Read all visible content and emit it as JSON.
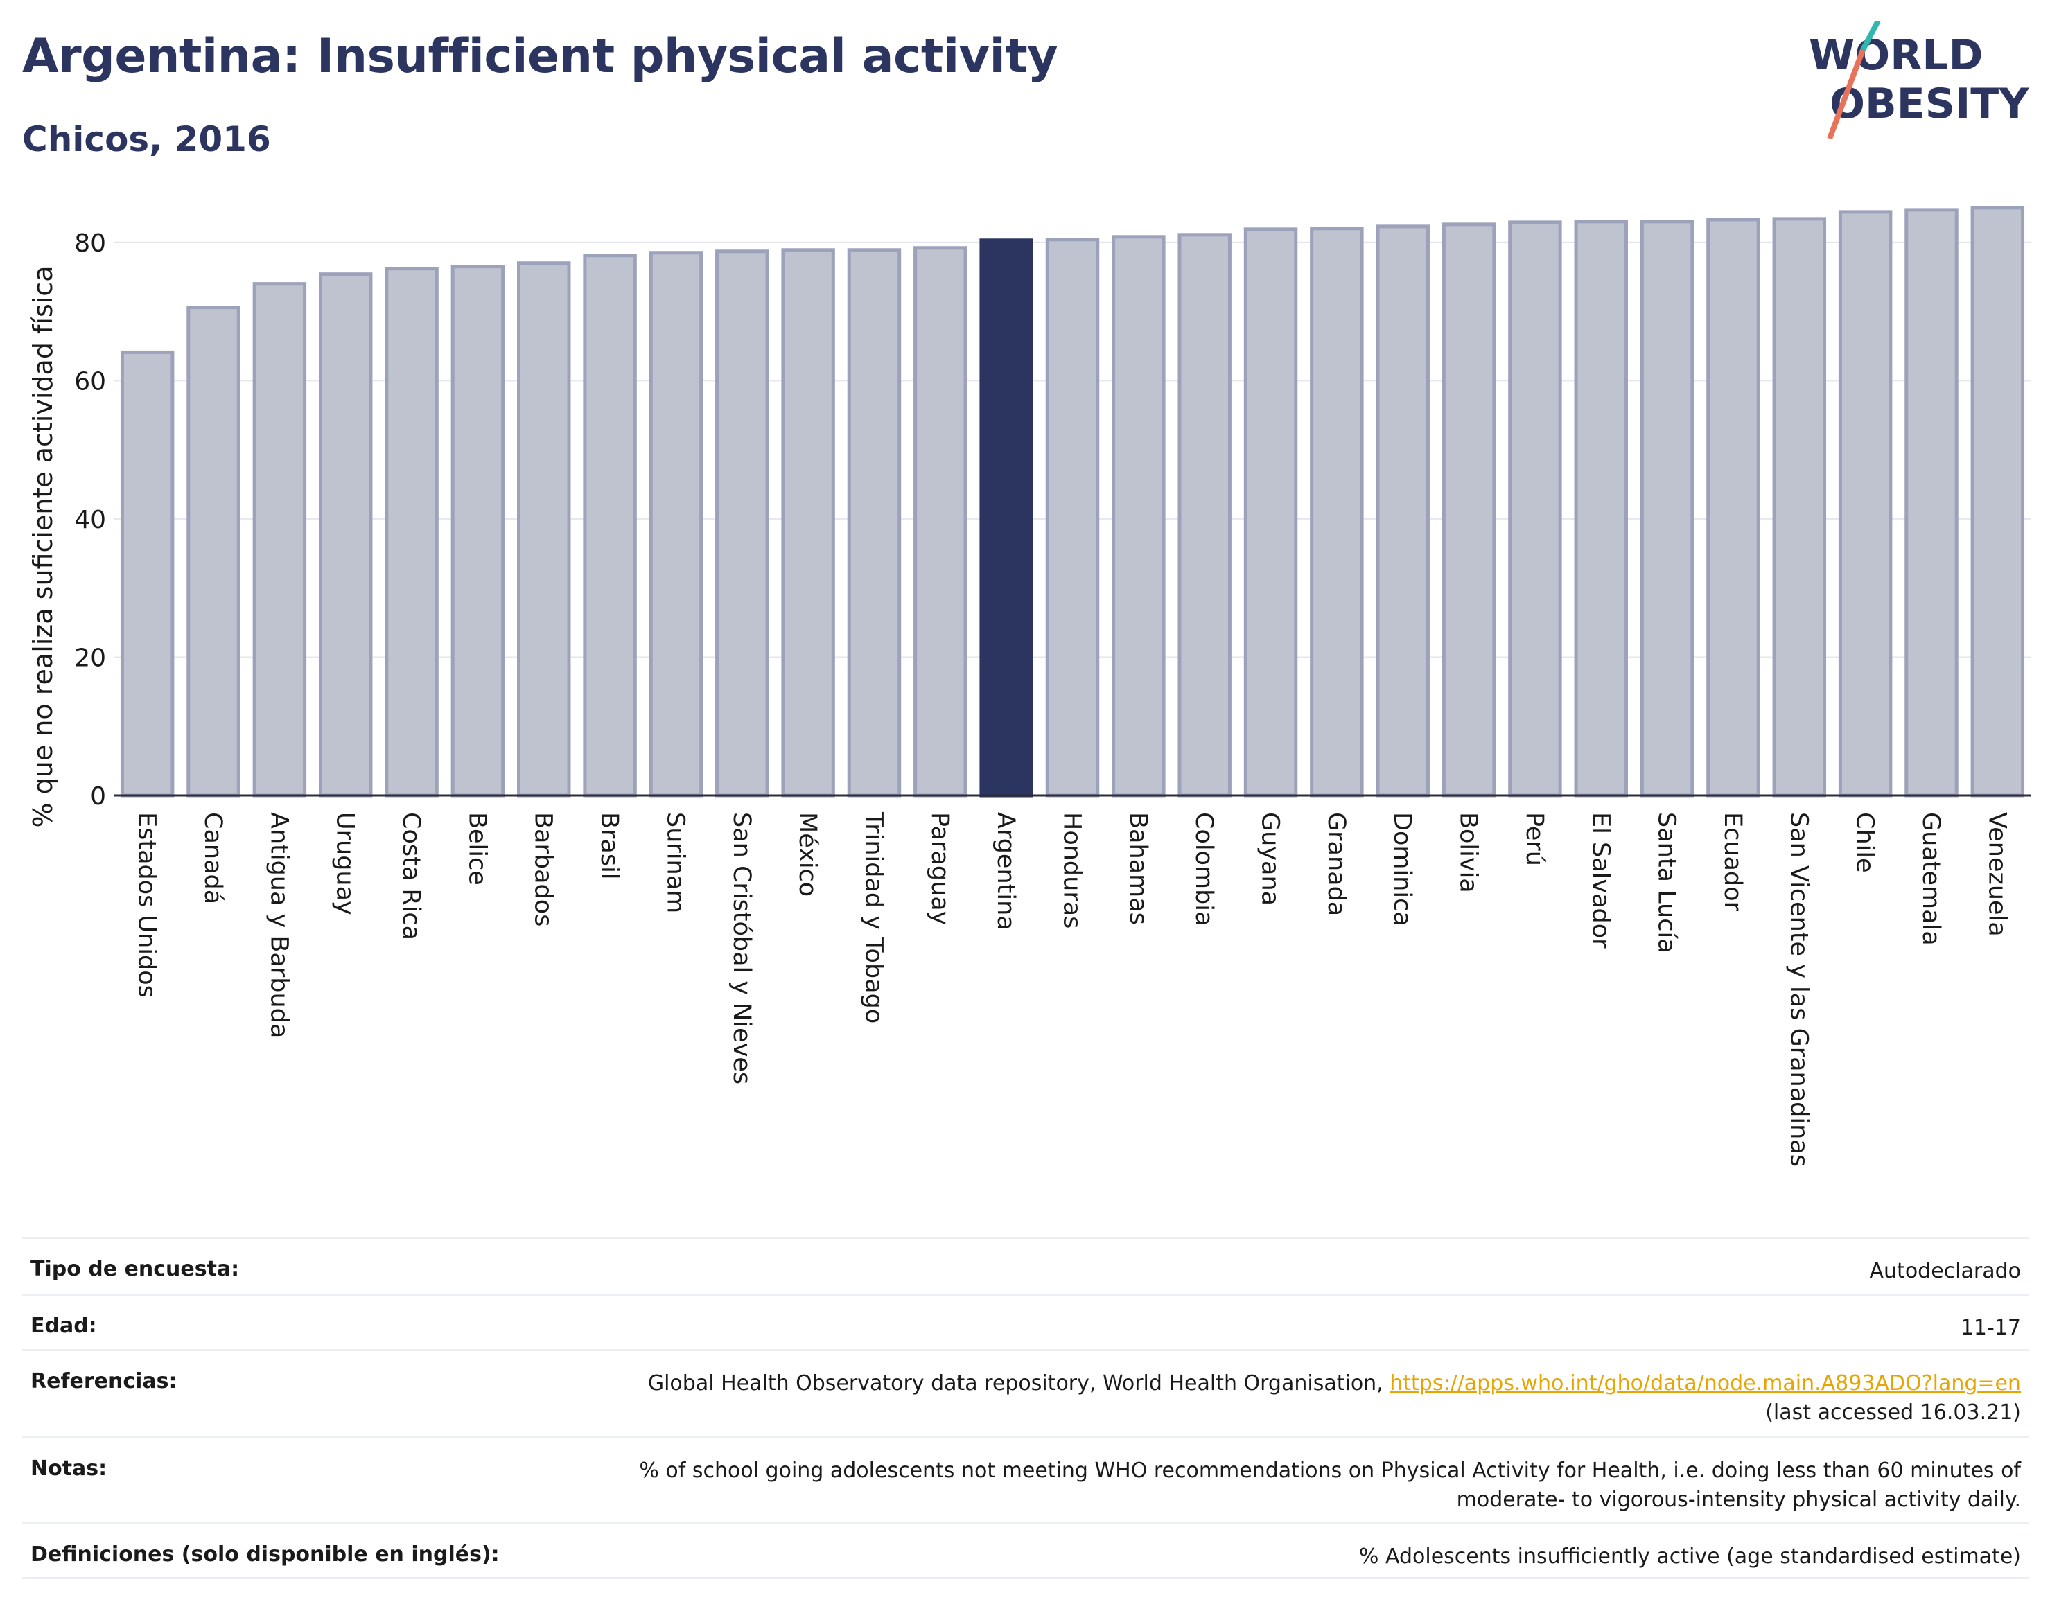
{
  "header": {
    "title": "Argentina: Insufficient physical activity",
    "subtitle": "Chicos, 2016"
  },
  "logo": {
    "line1": "WORLD",
    "line2": "OBESITY"
  },
  "chart_data": {
    "type": "bar",
    "title": "Argentina: Insufficient physical activity",
    "subtitle": "Chicos, 2016",
    "ylabel": "% que no realiza suficiente actividad física",
    "xlabel": "",
    "ylim": [
      0,
      90
    ],
    "yticks": [
      0,
      20,
      40,
      60,
      80
    ],
    "grid": true,
    "highlight": "Argentina",
    "colors": {
      "bar": "#bfc2cf",
      "bar_border": "#9da2bb",
      "highlight": "#2b3560"
    },
    "categories": [
      "Estados Unidos",
      "Canadá",
      "Antigua y Barbuda",
      "Uruguay",
      "Costa Rica",
      "Belice",
      "Barbados",
      "Brasil",
      "Surinam",
      "San Cristóbal y Nieves",
      "México",
      "Trinidad y Tobago",
      "Paraguay",
      "Argentina",
      "Honduras",
      "Bahamas",
      "Colombia",
      "Guyana",
      "Granada",
      "Dominica",
      "Bolivia",
      "Perú",
      "El Salvador",
      "Santa Lucía",
      "Ecuador",
      "San Vicente y las Granadinas",
      "Chile",
      "Guatemala",
      "Venezuela"
    ],
    "values": [
      64.1,
      70.6,
      74.0,
      75.4,
      76.2,
      76.5,
      77.0,
      78.1,
      78.5,
      78.7,
      78.9,
      78.9,
      79.2,
      80.3,
      80.4,
      80.8,
      81.1,
      81.9,
      82.0,
      82.3,
      82.6,
      82.9,
      83.0,
      83.0,
      83.3,
      83.4,
      84.4,
      84.7,
      85.0
    ]
  },
  "info_rows": [
    {
      "label": "Tipo de encuesta:",
      "value": "Autodeclarado"
    },
    {
      "label": "Edad:",
      "value": "11-17"
    },
    {
      "label": "Referencias:",
      "value": "Global Health Observatory data repository, World Health Organisation, ",
      "link": "https://apps.who.int/gho/data/node.main.A893ADO?lang=en",
      "value2": "(last accessed 16.03.21)"
    },
    {
      "label": "Notas:",
      "value": "% of school going adolescents not meeting WHO recommendations on Physical Activity for Health, i.e. doing less than 60 minutes of",
      "value2": "moderate- to vigorous-intensity physical activity daily."
    },
    {
      "label": "Definiciones (solo disponible en inglés):",
      "value": "% Adolescents insufficiently active (age standardised estimate)"
    }
  ]
}
